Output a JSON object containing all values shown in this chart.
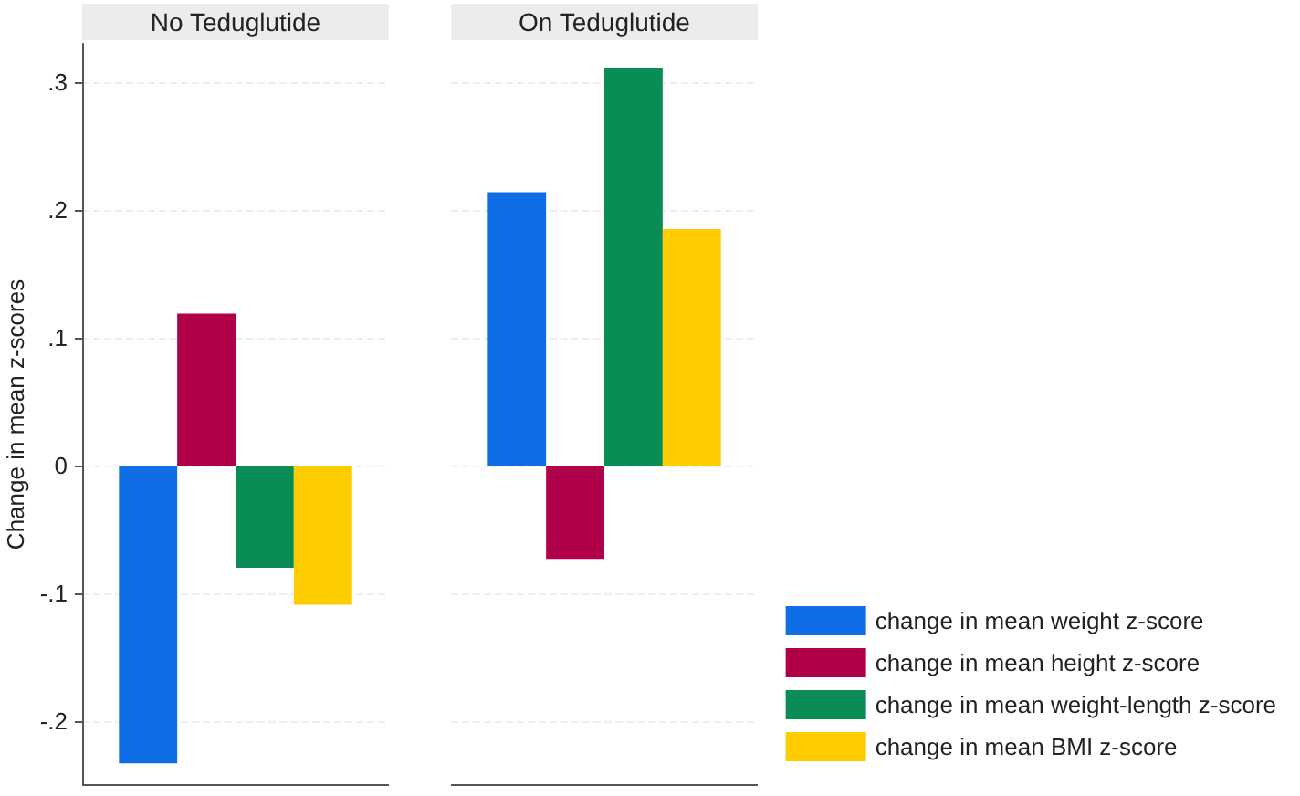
{
  "chart_data": {
    "type": "bar",
    "ylabel": "Change in mean z-scores",
    "categories": [
      "No Teduglutide",
      "On Teduglutide"
    ],
    "series": [
      {
        "name": "change in mean weight z-score",
        "color": "#0f6ee6",
        "values": [
          -0.233,
          0.214
        ]
      },
      {
        "name": "change in mean height z-score",
        "color": "#b0004a",
        "values": [
          0.119,
          -0.073
        ]
      },
      {
        "name": "change in mean weight-length z-score",
        "color": "#0a8c55",
        "values": [
          -0.08,
          0.311
        ]
      },
      {
        "name": "change in mean BMI z-score",
        "color": "#ffcc00",
        "values": [
          -0.109,
          0.185
        ]
      }
    ],
    "ylim": [
      -0.25,
      0.33
    ],
    "yticks": [
      {
        "value": -0.2,
        "label": "-.2"
      },
      {
        "value": -0.1,
        "label": "-.1"
      },
      {
        "value": 0,
        "label": "0"
      },
      {
        "value": 0.1,
        "label": ".1"
      },
      {
        "value": 0.2,
        "label": ".2"
      },
      {
        "value": 0.3,
        "label": ".3"
      }
    ],
    "grid": "y",
    "legend": "bottom right"
  }
}
